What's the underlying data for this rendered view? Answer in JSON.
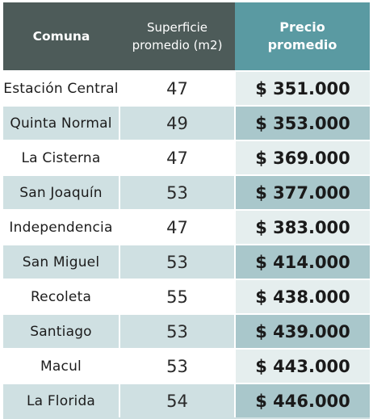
{
  "table": {
    "headers": {
      "comuna": "Comuna",
      "superficie_line1": "Superficie",
      "superficie_line2": "promedio (m2)",
      "precio_line1": "Precio",
      "precio_line2": "promedio"
    },
    "rows": [
      {
        "comuna": "Estación Central",
        "superficie": "47",
        "precio": "$ 351.000"
      },
      {
        "comuna": "Quinta Normal",
        "superficie": "49",
        "precio": "$ 353.000"
      },
      {
        "comuna": "La Cisterna",
        "superficie": "47",
        "precio": "$ 369.000"
      },
      {
        "comuna": "San Joaquín",
        "superficie": "53",
        "precio": "$ 377.000"
      },
      {
        "comuna": "Independencia",
        "superficie": "47",
        "precio": "$ 383.000"
      },
      {
        "comuna": "San Miguel",
        "superficie": "53",
        "precio": "$ 414.000"
      },
      {
        "comuna": "Recoleta",
        "superficie": "55",
        "precio": "$ 438.000"
      },
      {
        "comuna": "Santiago",
        "superficie": "53",
        "precio": "$ 439.000"
      },
      {
        "comuna": "Macul",
        "superficie": "53",
        "precio": "$ 443.000"
      },
      {
        "comuna": "La Florida",
        "superficie": "54",
        "precio": "$ 446.000"
      }
    ],
    "colors": {
      "header_dark": "#4d5b59",
      "header_accent": "#5a9aa2",
      "row_alt": "#cfe0e2",
      "price_light": "#e5eeee",
      "price_dark": "#a9c7cb"
    }
  }
}
